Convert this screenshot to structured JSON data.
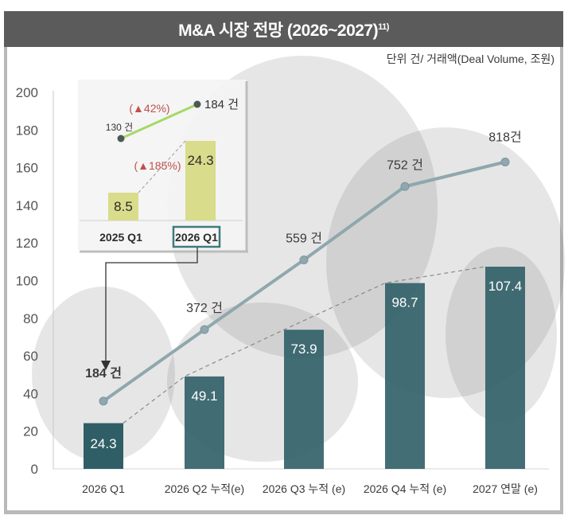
{
  "header": {
    "title": "M&A 시장 전망 (2026~2027)",
    "footnote": "11)",
    "unit_label": "단위 건/ 거래액(Deal Volume,  조원)"
  },
  "colors": {
    "title_bg": "#5b5b5b",
    "bar_main": "#2f5e66",
    "bar_light": "#d9dc8a",
    "line_main": "#8fa7ae",
    "inset_line": "#a6d86a",
    "growth_text": "#c0504d",
    "highlight_box": "#3f7a80"
  },
  "chart_data": [
    {
      "type": "bar+line",
      "title": "M&A 시장 전망 (2026~2027)",
      "ylabel": "",
      "xlabel": "",
      "ylim": [
        0,
        200
      ],
      "yticks": [
        0,
        20,
        40,
        60,
        80,
        100,
        120,
        140,
        160,
        180,
        200
      ],
      "grid": false,
      "categories": [
        "2026 Q1",
        "2026 Q2 누적(e)",
        "2026 Q3 누적 (e)",
        "2026 Q4 누적 (e)",
        "2027 연말 (e)"
      ],
      "series": [
        {
          "name": "거래액 (조원)",
          "kind": "bar",
          "values": [
            24.3,
            49.1,
            73.9,
            98.7,
            107.4
          ],
          "labels": [
            "24.3",
            "49.1",
            "73.9",
            "98.7",
            "107.4"
          ]
        },
        {
          "name": "Deal Volume (건)",
          "kind": "line",
          "values": [
            184,
            372,
            559,
            752,
            818
          ],
          "plot_values": [
            36,
            74,
            111,
            150,
            163
          ],
          "labels": [
            "184 건",
            "372 건",
            "559 건",
            "752 건",
            "818건"
          ]
        }
      ],
      "trend_line": "dashed, connecting bar tops"
    },
    {
      "type": "bar+line",
      "title": "inset comparison",
      "categories": [
        "2025 Q1",
        "2026 Q1"
      ],
      "highlighted_category": "2026 Q1",
      "series": [
        {
          "name": "거래액 (조원)",
          "kind": "bar",
          "values": [
            8.5,
            24.3
          ],
          "labels": [
            "8.5",
            "24.3"
          ]
        },
        {
          "name": "Deal Volume (건)",
          "kind": "line",
          "values": [
            130,
            184
          ],
          "labels": [
            "130 건",
            "184 건"
          ]
        }
      ],
      "annotations": [
        "(▲42%)",
        "(▲185%)"
      ]
    }
  ]
}
